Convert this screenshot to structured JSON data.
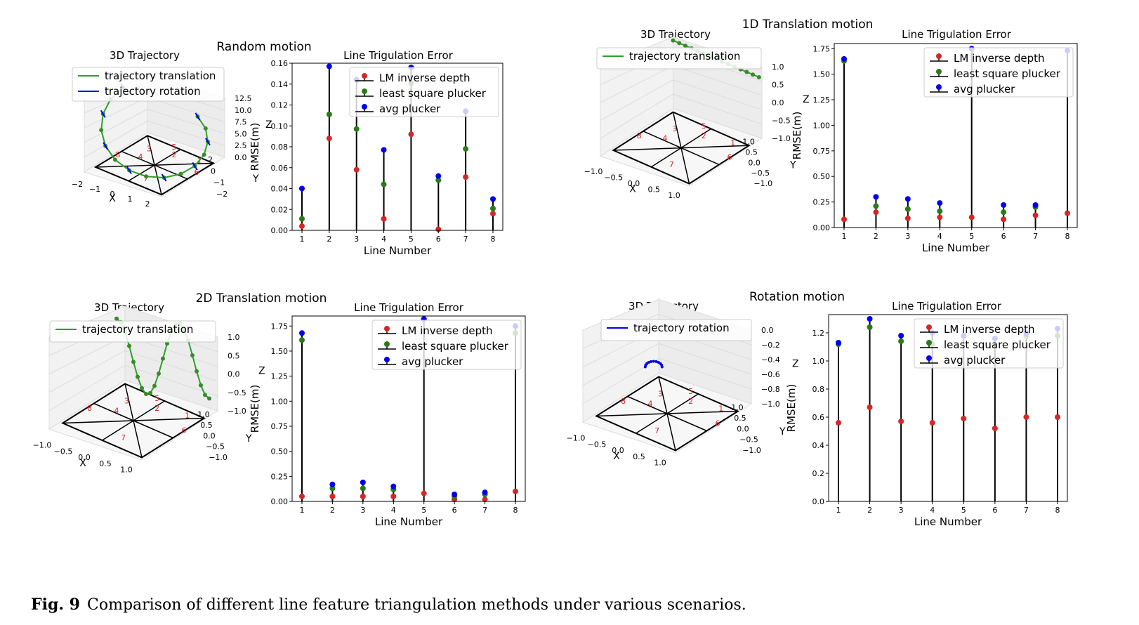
{
  "panels": [
    {
      "id": "random",
      "title": "Random motion",
      "traj_title": "3D Trajectory",
      "traj_legend": [
        "trajectory translation",
        "trajectory rotation"
      ],
      "traj_z_ticks": [
        "12.5",
        "10.0",
        "7.5",
        "5.0",
        "2.5",
        "0.0"
      ],
      "traj_x_ticks": [
        "−2",
        "−1",
        "0",
        "1",
        "2"
      ],
      "traj_y_ticks": [
        "2",
        "0",
        "−1",
        "−2"
      ],
      "traj_x_label": "X",
      "traj_y_label": "Y",
      "traj_z_label": "Z"
    },
    {
      "id": "t1d",
      "title": "1D Translation motion",
      "traj_title": "3D Trajectory",
      "traj_legend": [
        "trajectory translation"
      ],
      "traj_z_ticks": [
        "1.0",
        "0.5",
        "0.0",
        "−0.5",
        "−1.0"
      ],
      "traj_x_ticks": [
        "−1.0",
        "−0.5",
        "0.0",
        "0.5",
        "1.0"
      ],
      "traj_y_ticks": [
        "1.0",
        "0.5",
        "0.0",
        "−0.5",
        "−1.0"
      ],
      "traj_x_label": "X",
      "traj_y_label": "Y",
      "traj_z_label": "Z"
    },
    {
      "id": "t2d",
      "title": "2D Translation motion",
      "traj_title": "3D Trajectory",
      "traj_legend": [
        "trajectory translation"
      ],
      "traj_z_ticks": [
        "1.0",
        "0.5",
        "0.0",
        "−0.5",
        "−1.0"
      ],
      "traj_x_ticks": [
        "−1.0",
        "−0.5",
        "0.0",
        "0.5",
        "1.0"
      ],
      "traj_y_ticks": [
        "1.0",
        "0.5",
        "0.0",
        "−0.5",
        "−1.0"
      ],
      "traj_x_label": "X",
      "traj_y_label": "Y",
      "traj_z_label": "Z"
    },
    {
      "id": "rot",
      "title": "Rotation motion",
      "traj_title": "3D Trajectory",
      "traj_legend": [
        "trajectory rotation"
      ],
      "traj_z_ticks": [
        "0.0",
        "−0.2",
        "−0.4",
        "−0.6",
        "−0.8",
        "−1.0"
      ],
      "traj_x_ticks": [
        "−1.0",
        "−0.5",
        "0.0",
        "0.5",
        "1.0"
      ],
      "traj_y_ticks": [
        "1.0",
        "0.5",
        "0.0",
        "−0.5",
        "−1.0"
      ],
      "traj_x_label": "X",
      "traj_y_label": "Y",
      "traj_z_label": "Z"
    }
  ],
  "colors": {
    "lm": "#d62728",
    "ls": "#2a7a1a",
    "avg": "#0000ee",
    "translation": "#2ca02c",
    "rotation": "#0000ee",
    "line_label": "#d62728"
  },
  "chart_data": [
    {
      "type": "scatter",
      "panel": "Random motion",
      "title": "Line Trigulation Error",
      "xlabel": "Line Number",
      "ylabel": "RMSE(m)",
      "x": [
        1,
        2,
        3,
        4,
        5,
        6,
        7,
        8
      ],
      "ylim": [
        0,
        0.16
      ],
      "yticks": [
        0.0,
        0.02,
        0.04,
        0.06,
        0.08,
        0.1,
        0.12,
        0.14,
        0.16
      ],
      "ytick_labels": [
        "0.00",
        "0.02",
        "0.04",
        "0.06",
        "0.08",
        "0.10",
        "0.12",
        "0.14",
        "0.16"
      ],
      "legend": "top-right",
      "series": [
        {
          "name": "LM inverse depth",
          "values": [
            0.004,
            0.088,
            0.058,
            0.011,
            0.092,
            0.001,
            0.051,
            0.016
          ]
        },
        {
          "name": "least square plucker",
          "values": [
            0.011,
            0.111,
            0.097,
            0.044,
            0.141,
            0.048,
            0.078,
            0.021
          ]
        },
        {
          "name": "avg plucker",
          "values": [
            0.04,
            0.157,
            0.144,
            0.077,
            0.156,
            0.052,
            0.114,
            0.03
          ]
        }
      ]
    },
    {
      "type": "scatter",
      "panel": "1D Translation motion",
      "title": "Line Trigulation Error",
      "xlabel": "Line Number",
      "ylabel": "RMSE(m)",
      "x": [
        1,
        2,
        3,
        4,
        5,
        6,
        7,
        8
      ],
      "ylim": [
        0,
        1.8
      ],
      "yticks": [
        0,
        0.25,
        0.5,
        0.75,
        1.0,
        1.25,
        1.5,
        1.75
      ],
      "ytick_labels": [
        "0.00",
        "0.25",
        "0.50",
        "0.75",
        "1.00",
        "1.25",
        "1.50",
        "1.75"
      ],
      "legend": "top-right",
      "series": [
        {
          "name": "LM inverse depth",
          "values": [
            0.08,
            0.15,
            0.09,
            0.1,
            0.1,
            0.08,
            0.12,
            0.14
          ]
        },
        {
          "name": "least square plucker",
          "values": [
            1.63,
            0.21,
            0.18,
            0.16,
            1.75,
            0.15,
            0.2,
            1.73
          ]
        },
        {
          "name": "avg plucker",
          "values": [
            1.65,
            0.3,
            0.28,
            0.24,
            1.75,
            0.22,
            0.22,
            1.73
          ]
        }
      ]
    },
    {
      "type": "scatter",
      "panel": "2D Translation motion",
      "title": "Line Trigulation Error",
      "xlabel": "Line Number",
      "ylabel": "RMSE(m)",
      "x": [
        1,
        2,
        3,
        4,
        5,
        6,
        7,
        8
      ],
      "ylim": [
        0,
        1.85
      ],
      "yticks": [
        0,
        0.25,
        0.5,
        0.75,
        1.0,
        1.25,
        1.5,
        1.75
      ],
      "ytick_labels": [
        "0.00",
        "0.25",
        "0.50",
        "0.75",
        "1.00",
        "1.25",
        "1.50",
        "1.75"
      ],
      "legend": "top-right",
      "series": [
        {
          "name": "LM inverse depth",
          "values": [
            0.05,
            0.05,
            0.05,
            0.05,
            0.08,
            0.02,
            0.02,
            0.1
          ]
        },
        {
          "name": "least square plucker",
          "values": [
            1.61,
            0.13,
            0.13,
            0.12,
            1.82,
            0.05,
            0.07,
            1.68
          ]
        },
        {
          "name": "avg plucker",
          "values": [
            1.68,
            0.17,
            0.19,
            0.15,
            1.82,
            0.07,
            0.09,
            1.75
          ]
        }
      ]
    },
    {
      "type": "scatter",
      "panel": "Rotation motion",
      "title": "Line Trigulation Error",
      "xlabel": "Line Number",
      "ylabel": "RMSE(m)",
      "x": [
        1,
        2,
        3,
        4,
        5,
        6,
        7,
        8
      ],
      "ylim": [
        0,
        1.33
      ],
      "yticks": [
        0,
        0.2,
        0.4,
        0.6,
        0.8,
        1.0,
        1.2
      ],
      "ytick_labels": [
        "0.0",
        "0.2",
        "0.4",
        "0.6",
        "0.8",
        "1.0",
        "1.2"
      ],
      "legend": "top-right",
      "series": [
        {
          "name": "LM inverse depth",
          "values": [
            0.56,
            0.67,
            0.57,
            0.56,
            0.59,
            0.52,
            0.6,
            0.6
          ]
        },
        {
          "name": "least square plucker",
          "values": [
            1.12,
            1.24,
            1.14,
            1.12,
            1.18,
            1.16,
            1.18,
            1.18
          ]
        },
        {
          "name": "avg plucker",
          "values": [
            1.13,
            1.3,
            1.18,
            1.2,
            1.18,
            1.16,
            1.2,
            1.23
          ]
        }
      ]
    }
  ],
  "caption": {
    "label": "Fig. 9",
    "text": "Comparison of different line feature triangulation methods under various scenarios."
  }
}
